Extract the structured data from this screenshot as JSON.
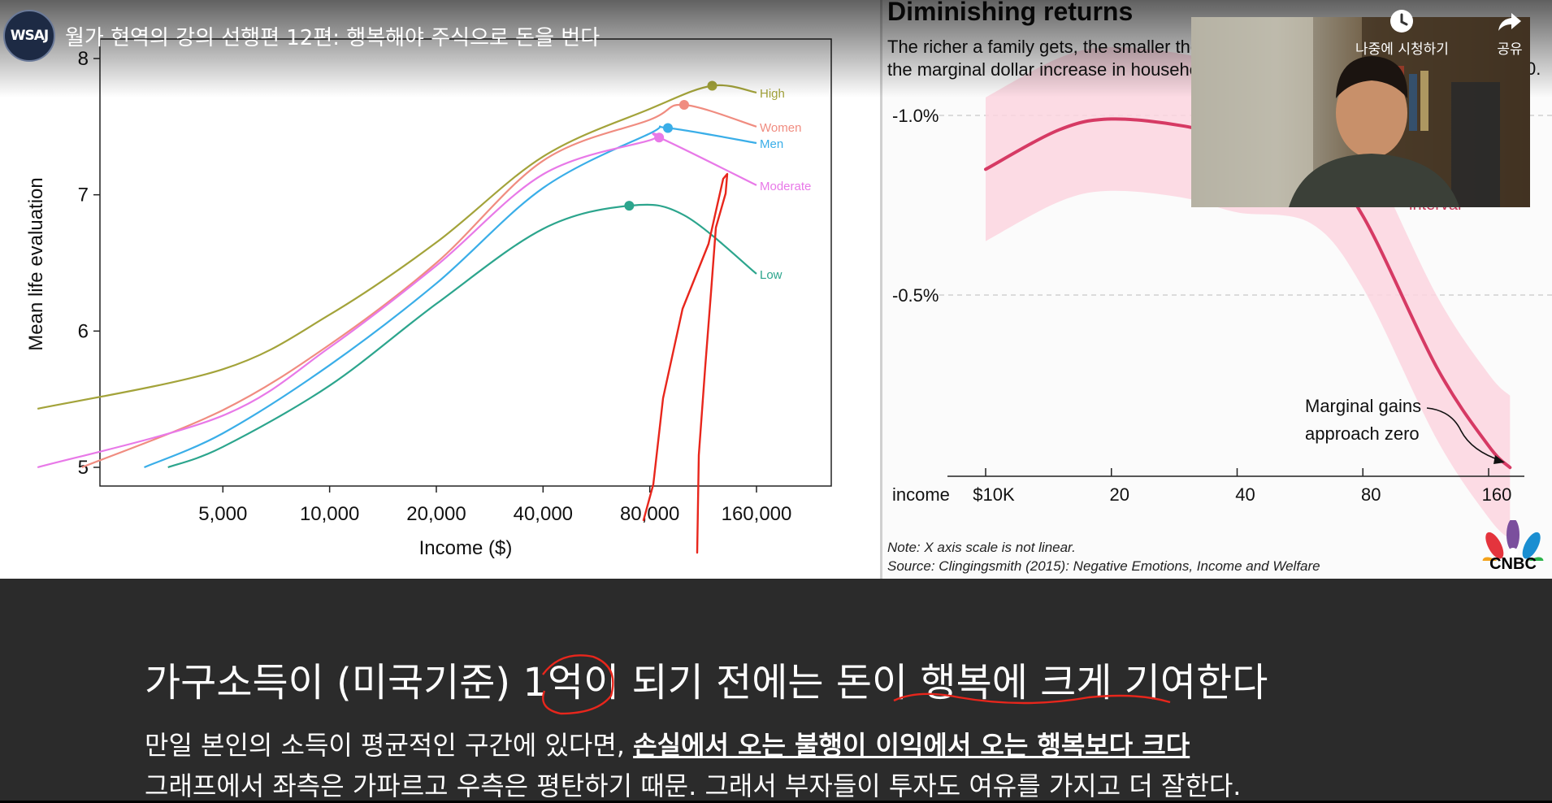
{
  "player": {
    "channel_logo": "WSAJ",
    "video_title": "월가 현역의 강의 선행편 12편: 행복해야 주식으로 돈을 번다",
    "watch_later_label": "나중에 시청하기",
    "share_label": "공유",
    "watch_later_icon": "clock-icon",
    "share_icon": "share-arrow-icon"
  },
  "left_chart": {
    "chart_data": {
      "type": "line",
      "xlabel": "Income ($)",
      "ylabel": "Mean life evaluation",
      "x_scale": "log",
      "x_ticks": [
        5000,
        10000,
        20000,
        40000,
        80000,
        160000
      ],
      "x_tick_labels": [
        "5,000",
        "10,000",
        "20,000",
        "40,000",
        "80,000",
        "160,000"
      ],
      "ylim": [
        5,
        8
      ],
      "y_ticks": [
        5,
        6,
        7,
        8
      ],
      "series": [
        {
          "name": "High",
          "color": "#a3a33a",
          "x": [
            1500,
            5000,
            10000,
            20000,
            40000,
            80000,
            120000,
            160000
          ],
          "y": [
            5.43,
            5.72,
            6.12,
            6.65,
            7.28,
            7.63,
            7.8,
            7.75
          ],
          "peak": {
            "x": 120000,
            "y": 7.8
          }
        },
        {
          "name": "Women",
          "color": "#f08c80",
          "x": [
            2000,
            5000,
            10000,
            20000,
            40000,
            80000,
            100000,
            160000
          ],
          "y": [
            5.0,
            5.42,
            5.9,
            6.5,
            7.25,
            7.55,
            7.66,
            7.5
          ],
          "peak": {
            "x": 100000,
            "y": 7.66
          }
        },
        {
          "name": "Men",
          "color": "#3aaee8",
          "x": [
            3000,
            5000,
            10000,
            20000,
            40000,
            80000,
            90000,
            160000
          ],
          "y": [
            5.0,
            5.25,
            5.75,
            6.35,
            7.05,
            7.45,
            7.49,
            7.38
          ],
          "peak": {
            "x": 90000,
            "y": 7.49
          }
        },
        {
          "name": "Moderate",
          "color": "#e879e8",
          "x": [
            1500,
            5000,
            10000,
            20000,
            40000,
            80000,
            85000,
            160000
          ],
          "y": [
            5.0,
            5.38,
            5.88,
            6.48,
            7.15,
            7.4,
            7.42,
            7.07
          ],
          "peak": {
            "x": 85000,
            "y": 7.42
          }
        },
        {
          "name": "Low",
          "color": "#2ca58d",
          "x": [
            3500,
            5000,
            10000,
            20000,
            40000,
            70000,
            100000,
            160000
          ],
          "y": [
            5.0,
            5.15,
            5.6,
            6.2,
            6.75,
            6.92,
            6.85,
            6.42
          ],
          "peak": {
            "x": 70000,
            "y": 6.92
          }
        }
      ]
    }
  },
  "right_chart": {
    "title": "Diminishing returns",
    "subtitle_line1": "The richer a family gets, the smaller the",
    "subtitle_line2": "the marginal dollar increase in househo",
    "subtitle_tail": "0.",
    "overlapped_text": "interval",
    "annotation": [
      "Marginal gains",
      "approach zero"
    ],
    "note": "Note: X axis scale is not linear.",
    "source": "Source: Clingingsmith (2015): Negative Emotions, Income and Welfare",
    "chart_data": {
      "type": "line",
      "xlabel": "income",
      "x_ticks": [
        10,
        20,
        40,
        80,
        160
      ],
      "x_tick_labels": [
        "$10K",
        "20",
        "40",
        "80",
        "160"
      ],
      "y_ticks": [
        -1.0,
        -0.5
      ],
      "y_tick_labels": [
        "-1.0%",
        "-0.5%"
      ],
      "series": [
        {
          "color": "#d63a64",
          "x": [
            10,
            15,
            20,
            30,
            40,
            60,
            80,
            120,
            160,
            180
          ],
          "y": [
            -0.85,
            -0.96,
            -0.99,
            -0.97,
            -0.93,
            -0.9,
            -0.72,
            -0.3,
            -0.08,
            -0.02
          ]
        }
      ],
      "band_color": "#fbd5df"
    }
  },
  "subtitles": {
    "line1": "가구소득이 (미국기준) 1억이 되기 전에는 돈이 행복에 크게 기여한다",
    "line2_plain": "만일 본인의 소득이 평균적인 구간에 있다면, ",
    "line2_emphasis": "손실에서 오는 불행이 이익에서 오는 행복보다 크다",
    "line3": "그래프에서 좌측은 가파르고 우측은 평탄하기 때문. 그래서 부자들이 투자도 여유를 가지고 더 잘한다."
  },
  "branding": {
    "logo_text": "CNBC"
  },
  "colors": {
    "annotation_ink": "#e8261c",
    "subtitle_bg": "#2b2b2b"
  }
}
